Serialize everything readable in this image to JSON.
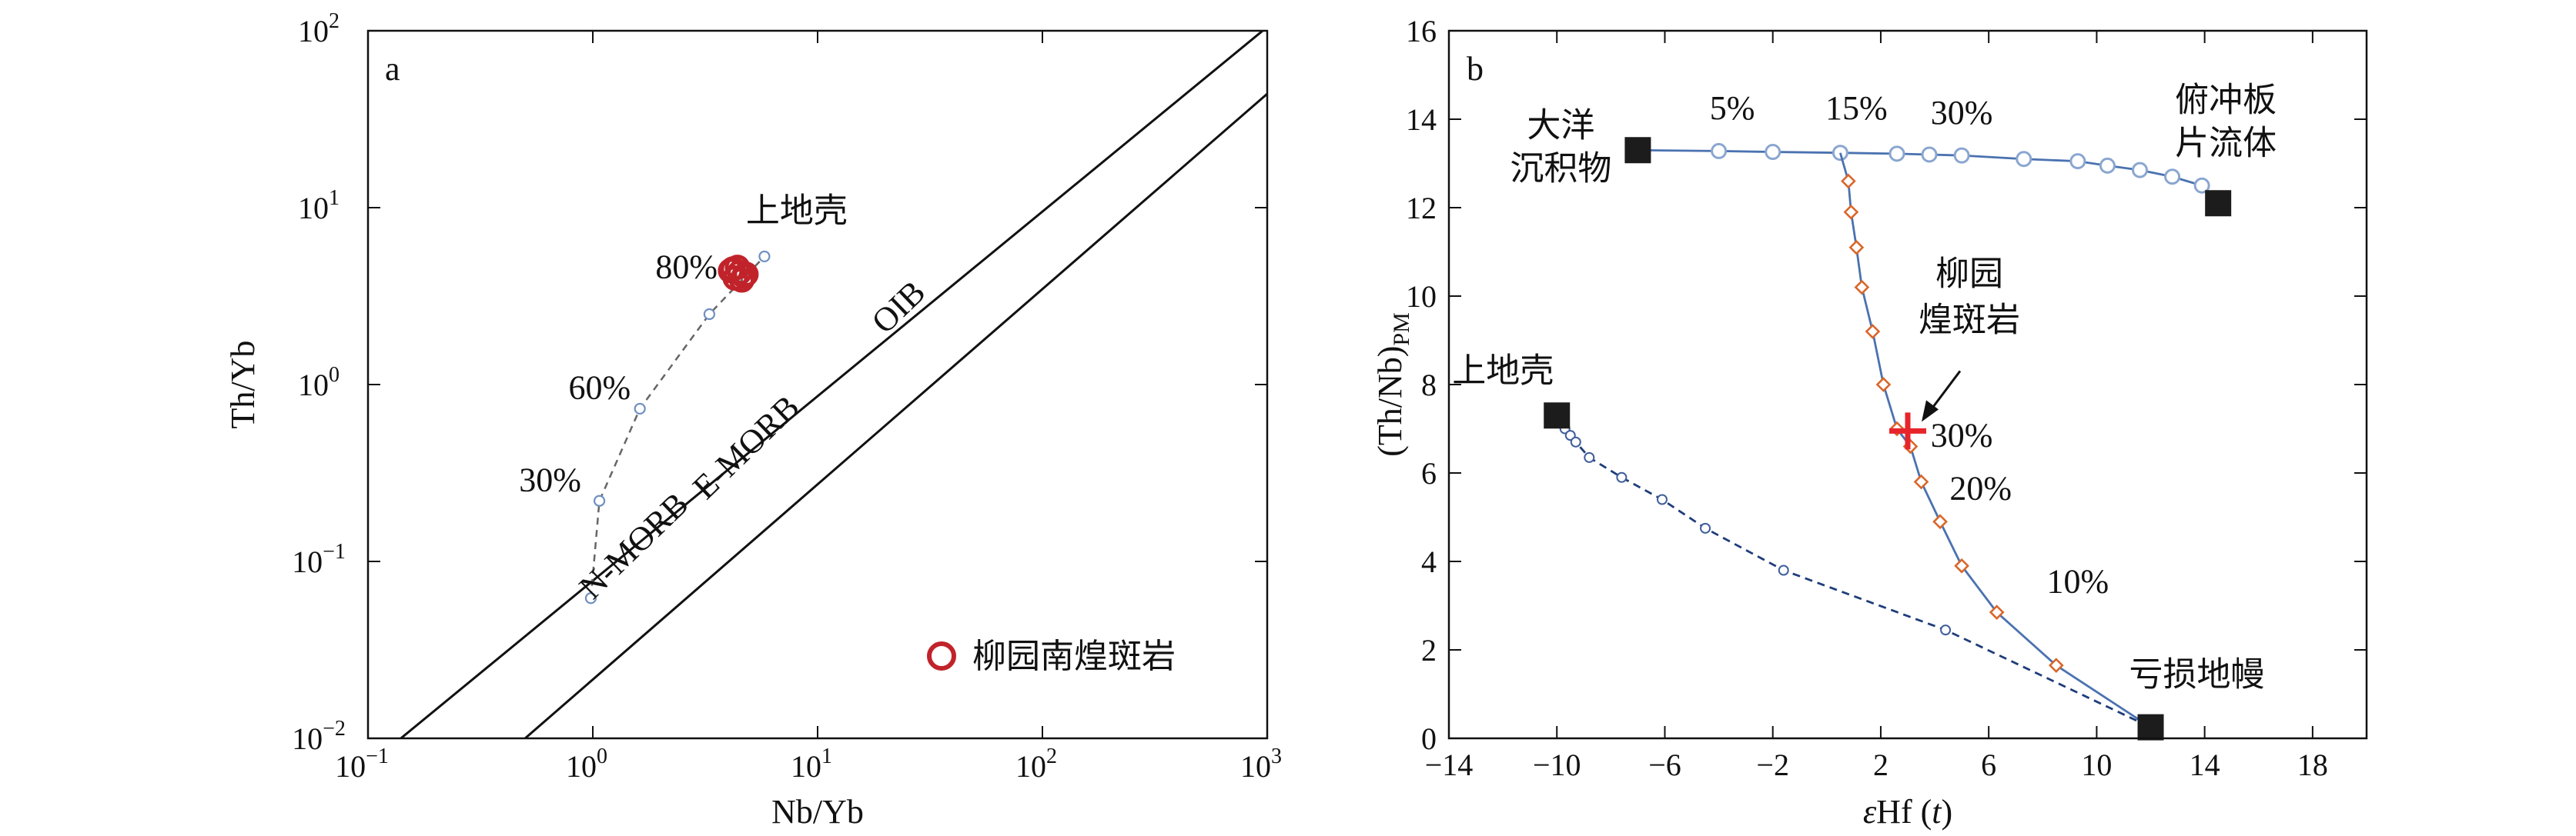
{
  "chart_data": [
    {
      "type": "scatter",
      "panel_label": "a",
      "xlabel": "Nb/Yb",
      "ylabel": "Th/Yb",
      "xscale": "log",
      "yscale": "log",
      "xlim": [
        0.1,
        1000
      ],
      "ylim": [
        0.01,
        100
      ],
      "x_ticks": [
        {
          "value": 0.1,
          "base": "10",
          "exp": "−1"
        },
        {
          "value": 1,
          "base": "10",
          "exp": "0"
        },
        {
          "value": 10,
          "base": "10",
          "exp": "1"
        },
        {
          "value": 100,
          "base": "10",
          "exp": "2"
        },
        {
          "value": 1000,
          "base": "10",
          "exp": "3"
        }
      ],
      "y_ticks": [
        {
          "value": 0.01,
          "base": "10",
          "exp": "−2"
        },
        {
          "value": 0.1,
          "base": "10",
          "exp": "−1"
        },
        {
          "value": 1,
          "base": "10",
          "exp": "0"
        },
        {
          "value": 10,
          "base": "10",
          "exp": "1"
        },
        {
          "value": 100,
          "base": "10",
          "exp": "2"
        }
      ],
      "array_lines": [
        {
          "points": [
            [
              0.14,
              0.01
            ],
            [
              1000,
              105
            ]
          ]
        },
        {
          "points": [
            [
              0.5,
              0.01
            ],
            [
              1000,
              44
            ]
          ]
        }
      ],
      "array_labels": [
        {
          "text": "N-MORB",
          "x": 1.0,
          "y": 0.06,
          "angle": -44
        },
        {
          "text": "E-MORB",
          "x": 3.2,
          "y": 0.22,
          "angle": -44
        },
        {
          "text": "OIB",
          "x": 20,
          "y": 1.9,
          "angle": -44
        }
      ],
      "mixing_curve": {
        "points": [
          [
            0.98,
            0.062
          ],
          [
            1.07,
            0.22
          ],
          [
            1.62,
            0.73
          ],
          [
            3.3,
            2.5
          ],
          [
            5.8,
            5.3
          ]
        ],
        "labels": [
          {
            "text": "30%",
            "x": 0.47,
            "y": 0.25
          },
          {
            "text": "60%",
            "x": 0.78,
            "y": 0.83
          },
          {
            "text": "80%",
            "x": 1.9,
            "y": 4.0
          },
          {
            "text": "上地壳",
            "x": 4.8,
            "y": 8.3
          }
        ]
      },
      "series": [
        {
          "name": "柳园南煌斑岩",
          "color": "#c1232b",
          "marker": "open-circle",
          "points": [
            [
              4.2,
              4.5
            ],
            [
              4.5,
              4.3
            ],
            [
              4.3,
              4.0
            ],
            [
              4.7,
              4.1
            ],
            [
              4.1,
              4.4
            ],
            [
              4.6,
              3.9
            ],
            [
              4.4,
              4.6
            ],
            [
              4.8,
              4.2
            ]
          ]
        }
      ],
      "legend": "bottom-right"
    },
    {
      "type": "line",
      "panel_label": "b",
      "xlabel": {
        "italic": "ε",
        "main": "Hf (",
        "var": "t",
        "close": ")"
      },
      "ylabel": {
        "main": "(Th/Nb)",
        "sub": "PM"
      },
      "xlim": [
        -14,
        20
      ],
      "ylim": [
        0,
        16
      ],
      "x_ticks": [
        "−14",
        "−10",
        "−6",
        "−2",
        "2",
        "6",
        "10",
        "14",
        "18"
      ],
      "y_ticks": [
        "0",
        "2",
        "4",
        "6",
        "8",
        "10",
        "12",
        "14",
        "16"
      ],
      "end_members": [
        {
          "label_lines": [
            "大洋",
            "沉积物"
          ],
          "x": -7,
          "y": 13.3
        },
        {
          "label_lines": [
            "俯冲板",
            "片流体"
          ],
          "x": 14.5,
          "y": 12.1
        },
        {
          "label_lines": [
            "上地壳"
          ],
          "x": -10,
          "y": 7.3
        },
        {
          "label_lines": [
            "亏损地幔"
          ],
          "x": 12,
          "y": 0.25
        }
      ],
      "curves": [
        {
          "style": "solid",
          "color": "#4a72b0",
          "marker": "open-circle-blue",
          "points": [
            [
              -7,
              13.3
            ],
            [
              -4,
              13.28
            ],
            [
              -2,
              13.26
            ],
            [
              0.5,
              13.24
            ],
            [
              2.6,
              13.22
            ],
            [
              3.8,
              13.2
            ],
            [
              5,
              13.18
            ],
            [
              7.3,
              13.1
            ],
            [
              9.3,
              13.05
            ],
            [
              10.4,
              12.95
            ],
            [
              11.6,
              12.85
            ],
            [
              12.8,
              12.7
            ],
            [
              13.9,
              12.5
            ],
            [
              14.5,
              12.1
            ]
          ]
        },
        {
          "style": "dashed",
          "color": "#1f3d7a",
          "marker": "small-open-circle",
          "points": [
            [
              -10,
              7.3
            ],
            [
              -9.7,
              7.0
            ],
            [
              -9.5,
              6.85
            ],
            [
              -9.3,
              6.7
            ],
            [
              -8.8,
              6.35
            ],
            [
              -7.6,
              5.9
            ],
            [
              -6.1,
              5.4
            ],
            [
              -4.5,
              4.75
            ],
            [
              -1.6,
              3.8
            ],
            [
              4.4,
              2.45
            ],
            [
              12,
              0.25
            ]
          ]
        },
        {
          "style": "solid",
          "color": "#4a72b0",
          "marker": "open-diamond-orange",
          "points": [
            [
              0.5,
              13.24
            ],
            [
              0.8,
              12.6
            ],
            [
              0.9,
              11.9
            ],
            [
              1.1,
              11.1
            ],
            [
              1.3,
              10.2
            ],
            [
              1.7,
              9.2
            ],
            [
              2.1,
              8.0
            ],
            [
              2.6,
              7.0
            ],
            [
              3.1,
              6.6
            ],
            [
              3.5,
              5.8
            ],
            [
              4.2,
              4.9
            ],
            [
              5.0,
              3.9
            ],
            [
              6.3,
              2.85
            ],
            [
              8.5,
              1.65
            ],
            [
              12,
              0.25
            ]
          ]
        }
      ],
      "percent_labels": [
        {
          "text": "5%",
          "x": -3.5,
          "y": 14.0
        },
        {
          "text": "15%",
          "x": 1.1,
          "y": 14.0
        },
        {
          "text": "30%",
          "x": 5.0,
          "y": 13.9
        },
        {
          "text": "30%",
          "x": 5.0,
          "y": 6.6
        },
        {
          "text": "20%",
          "x": 5.7,
          "y": 5.4
        },
        {
          "text": "10%",
          "x": 9.3,
          "y": 3.3
        }
      ],
      "sample": {
        "label_lines": [
          "柳园",
          "煌斑岩"
        ],
        "x": 3.0,
        "y": 6.95,
        "color": "#e8242b",
        "marker": "plus"
      }
    }
  ]
}
